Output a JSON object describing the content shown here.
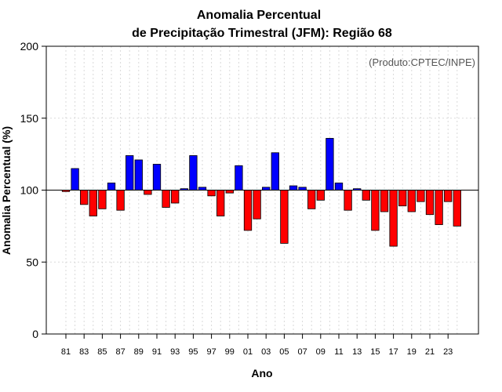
{
  "chart_data": {
    "type": "bar",
    "title_line1": "Anomalia Percentual",
    "title_line2": "de Precipitação Trimestral (JFM): Região 68",
    "xlabel": "Ano",
    "ylabel": "Anomalia Percentual (%)",
    "credit": "(Produto:CPTEC/INPE)",
    "ylim": [
      0,
      200
    ],
    "yticks": [
      0,
      50,
      100,
      150,
      200
    ],
    "baseline": 100,
    "x_tick_labels": [
      "81",
      "83",
      "85",
      "87",
      "89",
      "91",
      "93",
      "95",
      "97",
      "99",
      "01",
      "03",
      "05",
      "07",
      "09",
      "11",
      "13",
      "15",
      "17",
      "19",
      "21",
      "23"
    ],
    "categories": [
      "1981",
      "1982",
      "1983",
      "1984",
      "1985",
      "1986",
      "1987",
      "1988",
      "1989",
      "1990",
      "1991",
      "1992",
      "1993",
      "1994",
      "1995",
      "1996",
      "1997",
      "1998",
      "1999",
      "2000",
      "2001",
      "2002",
      "2003",
      "2004",
      "2005",
      "2006",
      "2007",
      "2008",
      "2009",
      "2010",
      "2011",
      "2012",
      "2013",
      "2014",
      "2015",
      "2016",
      "2017",
      "2018",
      "2019",
      "2020",
      "2021",
      "2022",
      "2023",
      "2024"
    ],
    "values": [
      99,
      115,
      90,
      82,
      87,
      105,
      86,
      124,
      121,
      97,
      118,
      88,
      91,
      101,
      124,
      102,
      96,
      82,
      98,
      117,
      72,
      80,
      102,
      126,
      63,
      103,
      102,
      87,
      93,
      136,
      105,
      86,
      101,
      93,
      72,
      85,
      61,
      89,
      85,
      92,
      83,
      76,
      92,
      75
    ],
    "colors": {
      "positive": "#0000ff",
      "negative": "#ff0000",
      "grid": "#d9d9d9",
      "axis": "#000000"
    },
    "grid": true
  }
}
